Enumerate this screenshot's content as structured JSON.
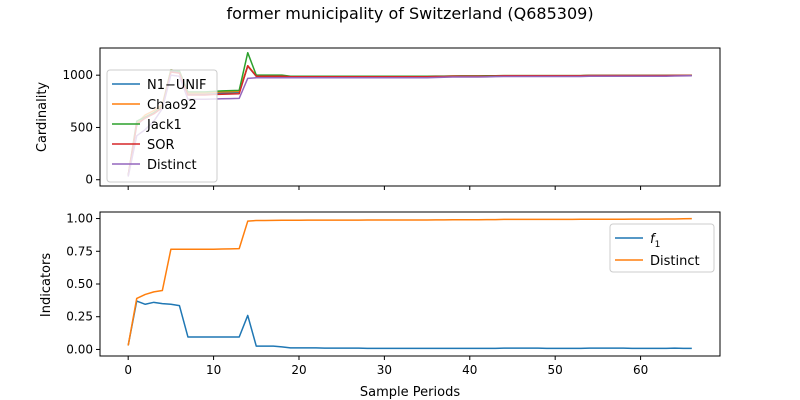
{
  "figure": {
    "title": "former municipality of Switzerland (Q685309)"
  },
  "chart_data": [
    {
      "type": "line",
      "panel": "top",
      "title": "",
      "xlabel": "",
      "ylabel": "Cardinality",
      "xlim": [
        -3.3,
        69.3
      ],
      "ylim": [
        -60,
        1260
      ],
      "xticks": [
        0,
        10,
        20,
        30,
        40,
        50,
        60
      ],
      "xtick_labels_visible": false,
      "yticks": [
        0,
        500,
        1000
      ],
      "legend": "upper-left",
      "grid": false,
      "x": [
        0,
        1,
        2,
        3,
        4,
        5,
        6,
        7,
        8,
        9,
        10,
        11,
        12,
        13,
        14,
        15,
        16,
        17,
        18,
        19,
        20,
        21,
        22,
        23,
        24,
        25,
        26,
        27,
        28,
        29,
        30,
        31,
        32,
        33,
        34,
        35,
        36,
        37,
        38,
        39,
        40,
        41,
        42,
        43,
        44,
        45,
        46,
        47,
        48,
        49,
        50,
        51,
        52,
        53,
        54,
        55,
        56,
        57,
        58,
        59,
        60,
        61,
        62,
        63,
        64,
        65,
        66
      ],
      "series": [
        {
          "name": "N1−UNIF",
          "color": "#1f77b4",
          "values": [
            40,
            520,
            600,
            640,
            700,
            1040,
            1030,
            820,
            820,
            820,
            825,
            830,
            832,
            835,
            1085,
            990,
            990,
            990,
            990,
            985,
            985,
            985,
            985,
            985,
            985,
            985,
            985,
            985,
            985,
            985,
            985,
            985,
            985,
            985,
            985,
            985,
            987,
            988,
            990,
            990,
            990,
            990,
            990,
            992,
            995,
            995,
            995,
            995,
            995,
            995,
            995,
            995,
            995,
            995,
            997,
            997,
            997,
            997,
            997,
            997,
            997,
            997,
            997,
            997,
            998,
            998,
            998
          ]
        },
        {
          "name": "Chao92",
          "color": "#ff7f0e",
          "values": [
            40,
            540,
            620,
            660,
            720,
            1050,
            1040,
            830,
            830,
            830,
            835,
            840,
            842,
            845,
            1090,
            995,
            995,
            995,
            995,
            988,
            988,
            988,
            988,
            988,
            988,
            988,
            988,
            988,
            988,
            988,
            988,
            988,
            988,
            988,
            988,
            988,
            990,
            990,
            992,
            992,
            992,
            992,
            993,
            994,
            996,
            996,
            996,
            996,
            996,
            996,
            996,
            996,
            996,
            996,
            998,
            998,
            998,
            998,
            998,
            998,
            998,
            998,
            998,
            998,
            999,
            999,
            999
          ]
        },
        {
          "name": "Jack1",
          "color": "#2ca02c",
          "values": [
            40,
            560,
            600,
            640,
            700,
            1050,
            1040,
            840,
            840,
            840,
            845,
            850,
            852,
            855,
            1215,
            1000,
            1000,
            1000,
            1000,
            990,
            990,
            990,
            990,
            990,
            990,
            990,
            990,
            990,
            990,
            990,
            990,
            990,
            990,
            990,
            990,
            990,
            991,
            991,
            992,
            993,
            993,
            993,
            994,
            995,
            996,
            996,
            996,
            996,
            996,
            996,
            996,
            996,
            996,
            996,
            998,
            998,
            998,
            998,
            998,
            998,
            998,
            998,
            998,
            998,
            999,
            999,
            999
          ]
        },
        {
          "name": "SOR",
          "color": "#d62728",
          "values": [
            40,
            530,
            590,
            630,
            690,
            1030,
            1020,
            810,
            810,
            810,
            815,
            818,
            820,
            822,
            1090,
            990,
            990,
            990,
            990,
            985,
            985,
            985,
            985,
            985,
            985,
            985,
            985,
            985,
            985,
            985,
            985,
            985,
            985,
            985,
            985,
            985,
            987,
            988,
            990,
            990,
            990,
            990,
            990,
            992,
            995,
            995,
            995,
            995,
            995,
            995,
            995,
            995,
            995,
            995,
            997,
            997,
            997,
            997,
            997,
            997,
            997,
            997,
            997,
            997,
            998,
            998,
            998
          ]
        },
        {
          "name": "Distinct",
          "color": "#9467bd",
          "values": [
            30,
            420,
            480,
            560,
            680,
            1000,
            990,
            770,
            770,
            770,
            772,
            774,
            776,
            778,
            970,
            975,
            975,
            975,
            975,
            975,
            975,
            975,
            975,
            975,
            975,
            975,
            975,
            975,
            975,
            975,
            975,
            975,
            975,
            975,
            975,
            975,
            978,
            980,
            982,
            982,
            982,
            983,
            984,
            986,
            988,
            988,
            988,
            988,
            988,
            988,
            988,
            988,
            988,
            988,
            990,
            990,
            990,
            990,
            990,
            990,
            990,
            990,
            990,
            990,
            992,
            993,
            995
          ]
        }
      ]
    },
    {
      "type": "line",
      "panel": "bottom",
      "title": "",
      "xlabel": "Sample Periods",
      "ylabel": "Indicators",
      "xlim": [
        -3.3,
        69.3
      ],
      "ylim": [
        -0.05,
        1.05
      ],
      "xticks": [
        0,
        10,
        20,
        30,
        40,
        50,
        60
      ],
      "yticks": [
        0.0,
        0.25,
        0.5,
        0.75,
        1.0
      ],
      "ytick_labels": [
        "0.00",
        "0.25",
        "0.50",
        "0.75",
        "1.00"
      ],
      "legend": "upper-right",
      "grid": false,
      "x": [
        0,
        1,
        2,
        3,
        4,
        5,
        6,
        7,
        8,
        9,
        10,
        11,
        12,
        13,
        14,
        15,
        16,
        17,
        18,
        19,
        20,
        21,
        22,
        23,
        24,
        25,
        26,
        27,
        28,
        29,
        30,
        31,
        32,
        33,
        34,
        35,
        36,
        37,
        38,
        39,
        40,
        41,
        42,
        43,
        44,
        45,
        46,
        47,
        48,
        49,
        50,
        51,
        52,
        53,
        54,
        55,
        56,
        57,
        58,
        59,
        60,
        61,
        62,
        63,
        64,
        65,
        66
      ],
      "series": [
        {
          "name": "f1",
          "name_base": "f",
          "name_sub": "1",
          "color": "#1f77b4",
          "values": [
            0.03,
            0.37,
            0.345,
            0.36,
            0.35,
            0.345,
            0.335,
            0.095,
            0.095,
            0.095,
            0.095,
            0.095,
            0.095,
            0.095,
            0.26,
            0.025,
            0.025,
            0.025,
            0.02,
            0.012,
            0.012,
            0.012,
            0.012,
            0.01,
            0.01,
            0.01,
            0.01,
            0.01,
            0.008,
            0.008,
            0.008,
            0.008,
            0.008,
            0.008,
            0.008,
            0.008,
            0.008,
            0.008,
            0.008,
            0.008,
            0.008,
            0.008,
            0.008,
            0.008,
            0.01,
            0.01,
            0.01,
            0.01,
            0.01,
            0.008,
            0.008,
            0.008,
            0.008,
            0.008,
            0.01,
            0.01,
            0.01,
            0.01,
            0.01,
            0.008,
            0.008,
            0.008,
            0.008,
            0.008,
            0.01,
            0.008,
            0.008
          ]
        },
        {
          "name": "Distinct",
          "color": "#ff7f0e",
          "values": [
            0.03,
            0.39,
            0.42,
            0.44,
            0.45,
            0.765,
            0.765,
            0.765,
            0.765,
            0.765,
            0.765,
            0.767,
            0.768,
            0.77,
            0.98,
            0.985,
            0.985,
            0.986,
            0.987,
            0.987,
            0.987,
            0.988,
            0.988,
            0.988,
            0.988,
            0.988,
            0.988,
            0.988,
            0.989,
            0.989,
            0.989,
            0.989,
            0.989,
            0.989,
            0.989,
            0.989,
            0.99,
            0.99,
            0.991,
            0.991,
            0.991,
            0.991,
            0.992,
            0.992,
            0.994,
            0.994,
            0.994,
            0.994,
            0.994,
            0.994,
            0.994,
            0.994,
            0.994,
            0.995,
            0.995,
            0.995,
            0.995,
            0.995,
            0.995,
            0.996,
            0.996,
            0.996,
            0.996,
            0.997,
            0.997,
            0.998,
            0.999
          ]
        }
      ]
    }
  ]
}
